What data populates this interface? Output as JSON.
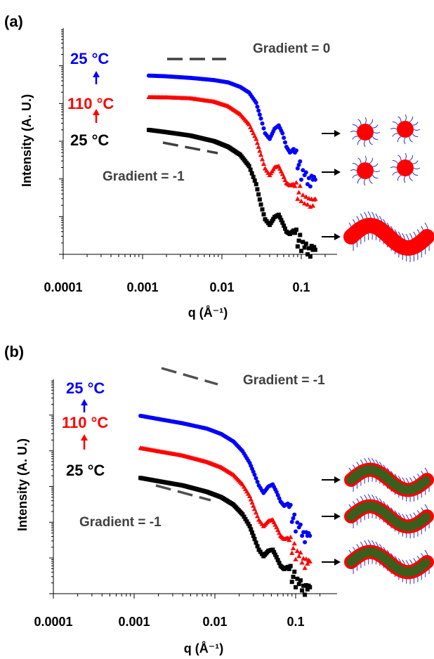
{
  "colors": {
    "hot": "#ff0000",
    "cool": "#0000ff",
    "base": "#000000",
    "slope": "#404040",
    "core": "#ff0000",
    "fiber": "#3a5f1c",
    "corona": "#2233cc"
  },
  "chart_data": [
    {
      "panel_label": "(a)",
      "type": "scatter",
      "x_scale": "log",
      "y_scale": "log",
      "xlim": [
        0.0001,
        0.2
      ],
      "xticks": [
        "0.0001",
        "0.001",
        "0.01",
        "0.1"
      ],
      "xlabel": "q (Å⁻¹)",
      "ylabel": "Intensity (A. U.)",
      "series_labels": [
        "25 °C",
        "110 °C",
        "25 °C"
      ],
      "series": [
        {
          "color": "blue",
          "marker": "circle",
          "x": [
            0.0012,
            0.002,
            0.004,
            0.008,
            0.012,
            0.017,
            0.022,
            0.027,
            0.031,
            0.035,
            0.04,
            0.046,
            0.052,
            0.058,
            0.065,
            0.072,
            0.08,
            0.09,
            0.1,
            0.11,
            0.12,
            0.13,
            0.14,
            0.15
          ],
          "y": [
            0.79,
            0.787,
            0.78,
            0.77,
            0.76,
            0.74,
            0.715,
            0.67,
            0.6,
            0.535,
            0.51,
            0.555,
            0.57,
            0.535,
            0.475,
            0.45,
            0.465,
            0.42,
            0.37,
            0.39,
            0.35,
            0.34,
            0.37,
            0.33
          ]
        },
        {
          "color": "red",
          "marker": "triangle",
          "x": [
            0.0012,
            0.002,
            0.004,
            0.008,
            0.012,
            0.017,
            0.022,
            0.027,
            0.031,
            0.035,
            0.04,
            0.046,
            0.052,
            0.058,
            0.065,
            0.072,
            0.08,
            0.09,
            0.1,
            0.11,
            0.12,
            0.13,
            0.14,
            0.15
          ],
          "y": [
            0.695,
            0.694,
            0.69,
            0.675,
            0.655,
            0.62,
            0.575,
            0.51,
            0.44,
            0.38,
            0.35,
            0.385,
            0.39,
            0.355,
            0.315,
            0.305,
            0.31,
            0.285,
            0.275,
            0.265,
            0.26,
            0.25,
            0.255,
            0.245
          ]
        },
        {
          "color": "black",
          "marker": "square",
          "x": [
            0.0012,
            0.002,
            0.004,
            0.008,
            0.012,
            0.017,
            0.022,
            0.027,
            0.031,
            0.035,
            0.04,
            0.046,
            0.052,
            0.058,
            0.065,
            0.072,
            0.08,
            0.09,
            0.1,
            0.11,
            0.12,
            0.13,
            0.14,
            0.15
          ],
          "y": [
            0.55,
            0.54,
            0.525,
            0.5,
            0.475,
            0.44,
            0.39,
            0.31,
            0.22,
            0.155,
            0.13,
            0.165,
            0.175,
            0.14,
            0.1,
            0.09,
            0.105,
            0.075,
            0.055,
            0.07,
            0.04,
            0.03,
            0.06,
            0.02
          ]
        }
      ],
      "annotations": [
        "Gradient = 0",
        "Gradient = -1"
      ],
      "morphologies": [
        "spheres",
        "spheres",
        "worms"
      ]
    },
    {
      "panel_label": "(b)",
      "type": "scatter",
      "x_scale": "log",
      "y_scale": "log",
      "xlim": [
        0.0001,
        0.2
      ],
      "xticks": [
        "0.0001",
        "0.001",
        "0.01",
        "0.1"
      ],
      "xlabel": "q (Å⁻¹)",
      "ylabel": "Intensity (A. U.)",
      "series_labels": [
        "25 °C",
        "110 °C",
        "25 °C"
      ],
      "series": [
        {
          "color": "blue",
          "marker": "circle",
          "x": [
            0.0012,
            0.002,
            0.004,
            0.008,
            0.012,
            0.017,
            0.022,
            0.027,
            0.031,
            0.035,
            0.04,
            0.046,
            0.052,
            0.058,
            0.065,
            0.072,
            0.08,
            0.09,
            0.1,
            0.11,
            0.12,
            0.13,
            0.14,
            0.15
          ],
          "y": [
            0.83,
            0.815,
            0.795,
            0.77,
            0.745,
            0.71,
            0.665,
            0.61,
            0.555,
            0.505,
            0.47,
            0.5,
            0.51,
            0.475,
            0.43,
            0.41,
            0.42,
            0.375,
            0.33,
            0.35,
            0.31,
            0.28,
            0.31,
            0.27
          ]
        },
        {
          "color": "red",
          "marker": "triangle",
          "x": [
            0.0012,
            0.002,
            0.004,
            0.008,
            0.012,
            0.017,
            0.022,
            0.027,
            0.031,
            0.035,
            0.04,
            0.046,
            0.052,
            0.058,
            0.065,
            0.072,
            0.08,
            0.09,
            0.1,
            0.11,
            0.12,
            0.13,
            0.14,
            0.15
          ],
          "y": [
            0.68,
            0.665,
            0.645,
            0.615,
            0.59,
            0.555,
            0.51,
            0.455,
            0.395,
            0.345,
            0.315,
            0.34,
            0.345,
            0.31,
            0.27,
            0.255,
            0.26,
            0.23,
            0.2,
            0.215,
            0.185,
            0.16,
            0.18,
            0.15
          ]
        },
        {
          "color": "black",
          "marker": "square",
          "x": [
            0.0012,
            0.002,
            0.004,
            0.008,
            0.012,
            0.017,
            0.022,
            0.027,
            0.031,
            0.035,
            0.04,
            0.046,
            0.052,
            0.058,
            0.065,
            0.072,
            0.08,
            0.09,
            0.1,
            0.11,
            0.12,
            0.13,
            0.14,
            0.15
          ],
          "y": [
            0.54,
            0.525,
            0.505,
            0.475,
            0.45,
            0.415,
            0.37,
            0.315,
            0.255,
            0.205,
            0.175,
            0.2,
            0.205,
            0.17,
            0.13,
            0.115,
            0.125,
            0.095,
            0.07,
            0.085,
            0.055,
            0.035,
            0.06,
            0.03
          ]
        }
      ],
      "annotations": [
        "Gradient = -1",
        "Gradient = -1"
      ],
      "morphologies": [
        "fibers",
        "fibers",
        "fibers"
      ]
    }
  ]
}
